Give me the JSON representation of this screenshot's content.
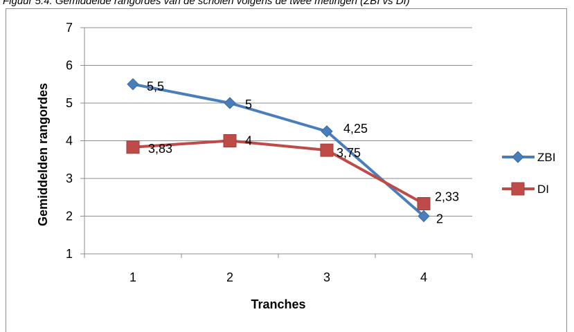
{
  "caption": "Figuur 5.4: Gemiddelde rangordes van de scholen volgens de twee metingen (ZBI vs DI)",
  "chart_data": {
    "type": "line",
    "title": "",
    "xlabel": "Tranches",
    "ylabel": "Gemiddelden rangordes",
    "categories": [
      "1",
      "2",
      "3",
      "4"
    ],
    "ylim": [
      1,
      7
    ],
    "yticks": [
      "1",
      "2",
      "3",
      "4",
      "5",
      "6",
      "7"
    ],
    "grid": true,
    "legend": "right",
    "series": [
      {
        "name": "ZBI",
        "values": [
          5.5,
          5,
          4.25,
          2
        ],
        "labels": [
          "5,5",
          "5",
          "4,25",
          "2"
        ],
        "color": "#4a7ebb",
        "marker": "diamond"
      },
      {
        "name": "DI",
        "values": [
          3.83,
          4,
          3.75,
          2.33
        ],
        "labels": [
          "3,83",
          "4",
          "3,75",
          "2,33"
        ],
        "color": "#be4b48",
        "marker": "square"
      }
    ]
  }
}
